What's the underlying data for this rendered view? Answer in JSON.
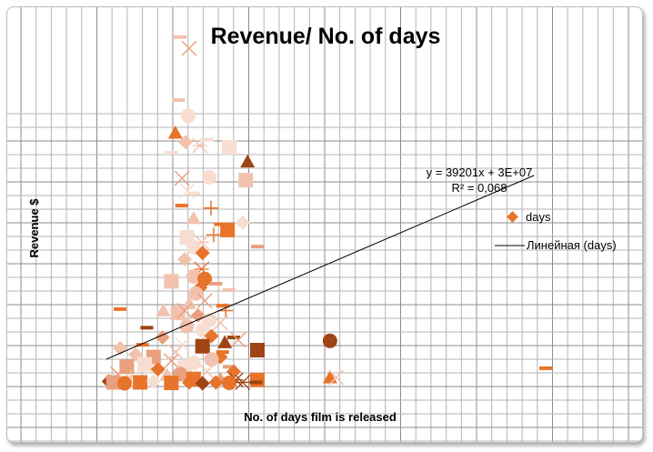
{
  "chart_data": {
    "type": "scatter",
    "title": "Revenue/ No. of days",
    "xlabel": "No. of days film is released",
    "ylabel": "Revenue $",
    "xlim": [
      0,
      1200
    ],
    "ylim_millions": [
      25,
      100
    ],
    "grid": true,
    "legend_position": "right",
    "legend": [
      {
        "label": "days",
        "type": "marker"
      },
      {
        "label": "Линейная (days)",
        "type": "line"
      }
    ],
    "trendline": {
      "type": "linear",
      "slope": 39201,
      "intercept": 30000000,
      "equation_label": "y = 39201x + 3E+07",
      "r2_label": "R² = 0,068",
      "x_range": [
        14,
        974
      ]
    },
    "marker_shapes": [
      "diamond",
      "square",
      "triangle",
      "x",
      "star",
      "circle",
      "plus",
      "dash"
    ],
    "marker_colors": [
      "#9E4416",
      "#E8732A",
      "#E9A07F",
      "#F2C2AE",
      "#F8DDD1"
    ],
    "series_name": "days",
    "points_note": "each point: [days, revenue in $M, shape index, color index]",
    "points": [
      [
        200,
        94.2,
        3,
        2
      ],
      [
        180,
        96.5,
        7,
        3
      ],
      [
        176,
        83.6,
        7,
        3
      ],
      [
        198,
        80.4,
        5,
        4
      ],
      [
        169,
        76.9,
        2,
        1
      ],
      [
        192,
        75.0,
        0,
        3
      ],
      [
        224,
        74.3,
        4,
        3
      ],
      [
        240,
        75.5,
        7,
        4
      ],
      [
        290,
        73.9,
        1,
        4
      ],
      [
        331,
        71.0,
        2,
        0
      ],
      [
        160,
        72.8,
        7,
        4
      ],
      [
        184,
        67.6,
        3,
        2
      ],
      [
        245,
        67.8,
        5,
        4
      ],
      [
        327,
        67.2,
        1,
        3
      ],
      [
        196,
        65.0,
        3,
        4
      ],
      [
        210,
        64.5,
        7,
        4
      ],
      [
        249,
        61.5,
        6,
        1
      ],
      [
        183,
        62.0,
        7,
        1
      ],
      [
        210,
        59.4,
        2,
        3
      ],
      [
        286,
        57.0,
        1,
        1
      ],
      [
        270,
        58.2,
        7,
        1
      ],
      [
        320,
        58.5,
        0,
        4
      ],
      [
        195,
        55.5,
        1,
        4
      ],
      [
        228,
        54.5,
        4,
        3
      ],
      [
        255,
        56.0,
        6,
        1
      ],
      [
        353,
        53.6,
        7,
        2
      ],
      [
        210,
        53.5,
        5,
        4
      ],
      [
        230,
        52.3,
        0,
        1
      ],
      [
        190,
        51.0,
        0,
        3
      ],
      [
        228,
        49.0,
        4,
        1
      ],
      [
        210,
        47.5,
        5,
        3
      ],
      [
        235,
        47.0,
        5,
        1
      ],
      [
        160,
        46.5,
        1,
        3
      ],
      [
        225,
        45.2,
        0,
        1
      ],
      [
        260,
        46.0,
        7,
        2
      ],
      [
        290,
        44.7,
        7,
        3
      ],
      [
        215,
        44.0,
        5,
        3
      ],
      [
        200,
        42.0,
        2,
        3
      ],
      [
        235,
        42.5,
        3,
        2
      ],
      [
        275,
        41.5,
        7,
        1
      ],
      [
        282,
        40.5,
        6,
        1
      ],
      [
        175,
        40.0,
        1,
        3
      ],
      [
        142,
        40.5,
        2,
        3
      ],
      [
        45,
        40.8,
        7,
        1
      ],
      [
        190,
        40.5,
        3,
        2
      ],
      [
        220,
        39.5,
        0,
        2
      ],
      [
        245,
        38.5,
        5,
        4
      ],
      [
        270,
        38.0,
        3,
        3
      ],
      [
        195,
        37.3,
        5,
        3
      ],
      [
        230,
        36.5,
        5,
        4
      ],
      [
        250,
        35.3,
        0,
        1
      ],
      [
        300,
        35.0,
        7,
        0
      ],
      [
        280,
        34.0,
        2,
        0
      ],
      [
        185,
        33.5,
        3,
        4
      ],
      [
        230,
        33.2,
        1,
        0
      ],
      [
        45,
        32.8,
        0,
        3
      ],
      [
        95,
        33.5,
        7,
        1
      ],
      [
        310,
        34.5,
        3,
        2
      ],
      [
        270,
        31.0,
        0,
        1
      ],
      [
        250,
        30.5,
        5,
        3
      ],
      [
        120,
        31.0,
        1,
        2
      ],
      [
        80,
        31.5,
        0,
        3
      ],
      [
        160,
        30.2,
        3,
        2
      ],
      [
        210,
        29.8,
        5,
        4
      ],
      [
        290,
        29.0,
        7,
        2
      ],
      [
        275,
        32.0,
        7,
        1
      ],
      [
        60,
        29.0,
        1,
        2
      ],
      [
        100,
        29.5,
        1,
        4
      ],
      [
        130,
        28.5,
        0,
        1
      ],
      [
        190,
        28.8,
        1,
        4
      ],
      [
        240,
        28.0,
        3,
        3
      ],
      [
        300,
        28.0,
        0,
        1
      ],
      [
        40,
        27.5,
        3,
        2
      ],
      [
        20,
        26.0,
        0,
        0
      ],
      [
        70,
        27.0,
        6,
        3
      ],
      [
        150,
        27.3,
        2,
        3
      ],
      [
        180,
        27.5,
        5,
        2
      ],
      [
        210,
        26.5,
        1,
        1
      ],
      [
        270,
        26.5,
        2,
        2
      ],
      [
        305,
        26.3,
        4,
        0
      ],
      [
        30,
        25.8,
        1,
        2
      ],
      [
        55,
        25.6,
        5,
        1
      ],
      [
        90,
        25.8,
        1,
        1
      ],
      [
        120,
        26.0,
        0,
        4
      ],
      [
        160,
        25.7,
        1,
        1
      ],
      [
        200,
        25.8,
        0,
        1
      ],
      [
        230,
        25.6,
        0,
        0
      ],
      [
        260,
        25.8,
        0,
        1
      ],
      [
        290,
        25.7,
        5,
        1
      ],
      [
        320,
        25.8,
        4,
        0
      ],
      [
        353,
        32.4,
        1,
        0
      ],
      [
        516,
        34.3,
        5,
        0
      ],
      [
        516,
        26.8,
        2,
        1
      ],
      [
        530,
        26.8,
        3,
        3
      ],
      [
        353,
        26.3,
        1,
        1
      ],
      [
        350,
        25.8,
        7,
        0
      ],
      [
        1000,
        28.7,
        7,
        1
      ],
      [
        105,
        37.0,
        7,
        0
      ],
      [
        140,
        35.0,
        0,
        2
      ],
      [
        170,
        32.0,
        3,
        3
      ]
    ]
  }
}
